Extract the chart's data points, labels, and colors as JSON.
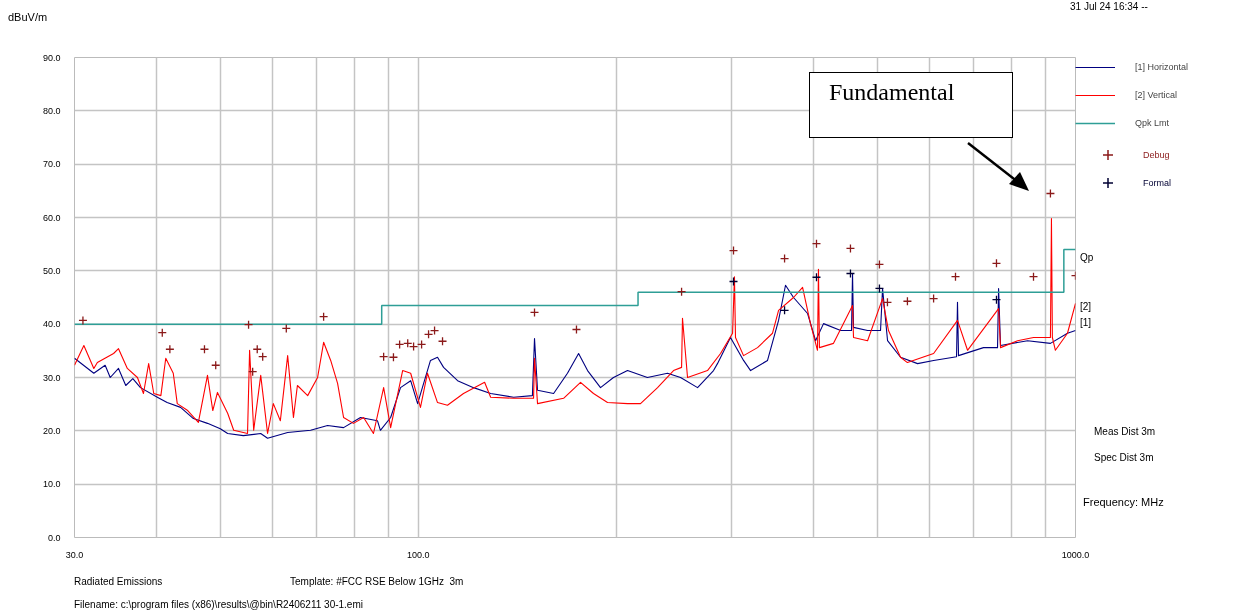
{
  "chart_data": {
    "type": "line",
    "ylabel": "dBuV/m",
    "xlabel": "Frequency: MHz",
    "log": "x",
    "grid": true,
    "legend": "top right",
    "line_style": "solid",
    "xlim": [
      30,
      1000
    ],
    "ylim": [
      0,
      90
    ],
    "xticks": [
      {
        "value": 30,
        "label": "30.0"
      },
      {
        "value": 40,
        "label": null
      },
      {
        "value": 50,
        "label": null
      },
      {
        "value": 60,
        "label": null
      },
      {
        "value": 70,
        "label": null
      },
      {
        "value": 80,
        "label": null
      },
      {
        "value": 90,
        "label": null
      },
      {
        "value": 100,
        "label": "100.0"
      },
      {
        "value": 200,
        "label": null
      },
      {
        "value": 300,
        "label": null
      },
      {
        "value": 400,
        "label": null
      },
      {
        "value": 500,
        "label": null
      },
      {
        "value": 600,
        "label": null
      },
      {
        "value": 700,
        "label": null
      },
      {
        "value": 800,
        "label": null
      },
      {
        "value": 900,
        "label": null
      },
      {
        "value": 1000,
        "label": "1000.0"
      }
    ],
    "yticks": [
      {
        "value": 0,
        "label": "0.0"
      },
      {
        "value": 10,
        "label": "10.0"
      },
      {
        "value": 20,
        "label": "20.0"
      },
      {
        "value": 30,
        "label": "30.0"
      },
      {
        "value": 40,
        "label": "40.0"
      },
      {
        "value": 50,
        "label": "50.0"
      },
      {
        "value": 60,
        "label": "60.0"
      },
      {
        "value": 70,
        "label": "70.0"
      },
      {
        "value": 80,
        "label": "80.0"
      },
      {
        "value": 90,
        "label": "90.0"
      }
    ],
    "series": [
      {
        "name": "[1] Horizontal",
        "color": "#000080",
        "x": [
          30,
          32.1,
          33.4,
          34.0,
          35.0,
          35.9,
          36.8,
          37.8,
          40.1,
          41.5,
          43.5,
          45.5,
          47.8,
          50.0,
          51.3,
          54.2,
          57.6,
          59.0,
          63.3,
          68.6,
          72.8,
          77.0,
          81.7,
          86.7,
          87.6,
          90.8,
          94.0,
          97.4,
          99.8,
          104.4,
          107.0,
          109.3,
          114.8,
          121.4,
          128.9,
          139.7,
          149.2,
          150.3,
          151.9,
          160.7,
          168.7,
          175.4,
          181.0,
          189.4,
          198.2,
          208.2,
          223.2,
          239.5,
          250.7,
          266.1,
          281.4,
          285.3,
          298.6,
          312.6,
          320.4,
          340.0,
          353.4,
          362.1,
          372.4,
          391.2,
          402.3,
          413.7,
          439.3,
          456.3,
          457.9,
          459.5,
          482.7,
          505.1,
          508.7,
          517.7,
          541.8,
          575.1,
          608.3,
          659.2,
          661.4,
          663.8,
          724.5,
          761.0,
          763.8,
          769.0,
          845.5,
          915.9,
          972.3,
          1000
        ],
        "values": [
          33.6,
          30.8,
          32.3,
          30.0,
          31.7,
          28.5,
          29.8,
          28.1,
          26.3,
          25.3,
          24.4,
          22.3,
          21.4,
          20.4,
          19.5,
          19.1,
          19.5,
          18.6,
          19.7,
          20.1,
          21.0,
          20.6,
          22.5,
          21.9,
          20.1,
          22.5,
          28.1,
          29.4,
          25.1,
          33.2,
          33.8,
          31.9,
          29.4,
          28.1,
          27.0,
          26.3,
          26.6,
          37.3,
          27.6,
          27.0,
          30.8,
          34.5,
          31.3,
          28.1,
          30.0,
          31.3,
          30.0,
          30.8,
          30.0,
          28.1,
          31.3,
          32.6,
          37.5,
          33.2,
          31.3,
          33.2,
          40.7,
          47.3,
          45.0,
          42.0,
          36.9,
          40.1,
          38.8,
          38.8,
          49.5,
          39.4,
          38.8,
          38.8,
          46.7,
          36.9,
          33.8,
          32.6,
          33.2,
          33.9,
          44.1,
          34.1,
          35.6,
          35.6,
          46.7,
          36.0,
          36.9,
          36.4,
          38.3,
          38.8
        ]
      },
      {
        "name": "[2] Vertical",
        "color": "#ff0000",
        "x": [
          30,
          31.0,
          32.1,
          32.5,
          34.4,
          35.0,
          36.1,
          37.4,
          38.2,
          38.9,
          39.6,
          40.6,
          41.3,
          42.4,
          43.0,
          44.6,
          46.3,
          47.8,
          48.7,
          49.5,
          51.3,
          52.4,
          55.0,
          55.4,
          56.2,
          57.6,
          59.0,
          60.2,
          61.7,
          63.3,
          64.6,
          65.5,
          67.9,
          70.3,
          71.8,
          73.6,
          75.4,
          77.0,
          79.7,
          82.6,
          85.5,
          88.6,
          90.8,
          94.7,
          97.4,
          100.8,
          103.3,
          107.0,
          110.8,
          117.2,
          126.2,
          128.9,
          139.7,
          149.8,
          150.3,
          151.9,
          166.4,
          176.6,
          184.8,
          194.1,
          208.2,
          217.9,
          231.3,
          244.6,
          251.6,
          252.4,
          256.9,
          275.5,
          288.4,
          300.8,
          302.8,
          303.9,
          312.6,
          328.3,
          346.0,
          353.4,
          372.4,
          384.4,
          395.2,
          405.0,
          406.4,
          407.8,
          428.4,
          457.9,
          459.5,
          482.7,
          508.7,
          519.4,
          541.8,
          555.0,
          608.3,
          661.4,
          685.1,
          763.8,
          769.0,
          816.3,
          863.2,
          915.9,
          919.2,
          922.2,
          932.0,
          972.3,
          1000
        ],
        "values": [
          32.3,
          36.0,
          31.7,
          32.8,
          34.5,
          35.4,
          31.7,
          30.0,
          27.0,
          32.6,
          27.0,
          26.6,
          33.6,
          30.8,
          25.1,
          23.8,
          21.6,
          30.4,
          23.8,
          27.2,
          23.3,
          20.1,
          19.5,
          35.1,
          20.1,
          30.4,
          19.5,
          25.1,
          21.9,
          34.1,
          22.5,
          28.5,
          26.6,
          30.0,
          36.6,
          33.2,
          28.9,
          22.5,
          21.4,
          22.5,
          19.5,
          28.1,
          20.6,
          31.3,
          30.8,
          24.4,
          30.8,
          25.3,
          24.8,
          27.0,
          29.1,
          26.3,
          26.1,
          26.1,
          33.6,
          25.1,
          26.1,
          29.1,
          27.0,
          25.3,
          25.1,
          25.1,
          28.1,
          31.3,
          31.9,
          41.1,
          30.0,
          31.3,
          34.5,
          38.3,
          48.9,
          37.5,
          34.1,
          35.6,
          38.3,
          42.6,
          45.0,
          46.9,
          40.1,
          35.1,
          50.3,
          35.6,
          36.4,
          43.5,
          37.5,
          36.9,
          44.8,
          38.8,
          33.8,
          32.8,
          34.5,
          40.7,
          35.1,
          42.9,
          35.6,
          36.9,
          37.5,
          37.5,
          59.8,
          37.5,
          35.1,
          38.3,
          43.9
        ]
      },
      {
        "name": "Qpk Lmt",
        "type": "step",
        "color": "#2e9e96",
        "x": [
          30,
          88,
          216,
          960,
          1000
        ],
        "values": [
          40,
          43.5,
          46,
          54,
          54
        ]
      },
      {
        "name": "Debug",
        "type": "scatter",
        "marker": "cross",
        "color": "#8b1a1a",
        "x": [
          30.9,
          40.8,
          41.9,
          47.3,
          49.2,
          55.2,
          56.0,
          56.9,
          58.0,
          63.0,
          71.8,
          88.6,
          91.7,
          93.7,
          96.4,
          98.4,
          101.2,
          103.7,
          105.9,
          108.9,
          150.3,
          174.1,
          251.6,
          301.8,
          360.9,
          403.6,
          454.6,
          503.2,
          517.5,
          555.0,
          608.3,
          656.8,
          758.2,
          863.2,
          915.9,
          1000
        ],
        "values": [
          40.7,
          38.4,
          35.3,
          35.3,
          32.3,
          39.9,
          31.1,
          35.3,
          33.9,
          39.2,
          41.4,
          33.9,
          33.8,
          36.2,
          36.4,
          35.8,
          36.2,
          38.1,
          38.8,
          36.8,
          42.2,
          39.0,
          46.1,
          53.8,
          52.3,
          55.1,
          54.2,
          51.2,
          44.1,
          44.3,
          44.8,
          48.9,
          51.4,
          48.9,
          64.5,
          49.1
        ]
      },
      {
        "name": "Formal",
        "type": "scatter",
        "marker": "cross",
        "color": "#000033",
        "x": [
          301.8,
          360.9,
          403.6,
          454.6,
          503.2,
          758.2
        ],
        "values": [
          48.0,
          42.6,
          48.8,
          49.5,
          46.7,
          44.6
        ]
      }
    ],
    "annotations": [
      "Meas Dist 3m",
      "Spec Dist 3m",
      "Radiated Emissions",
      "Template: #FCC RSE Below 1GHz  3m",
      "Filename: c:\\program files (x86)\\results\\@bin\\R2406211 30-1.emi",
      "31 Jul 24 16:34 --",
      "Qp",
      "[2]",
      "[1]",
      "Fundamental"
    ]
  }
}
